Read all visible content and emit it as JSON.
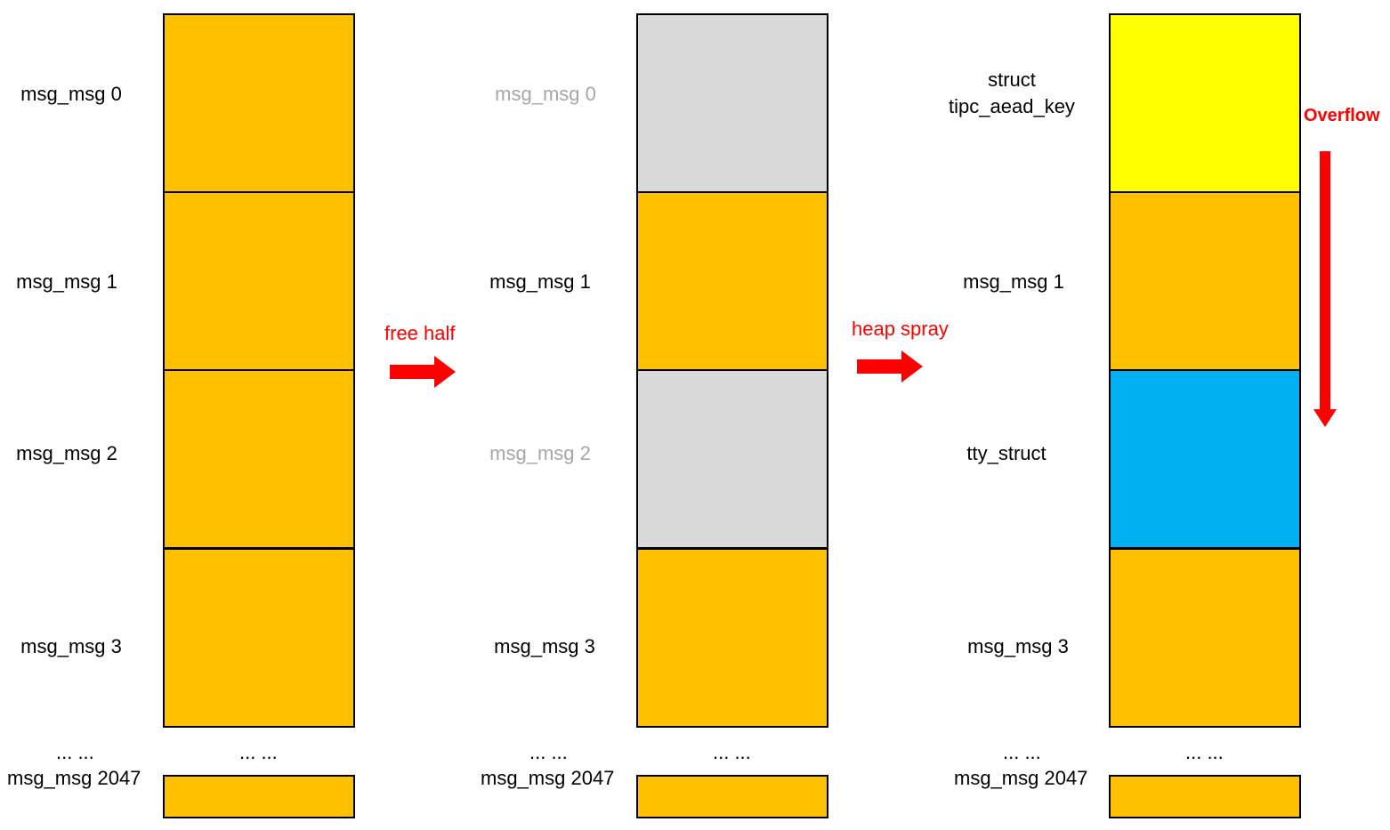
{
  "stage1": {
    "labels": [
      "msg_msg 0",
      "msg_msg 1",
      "msg_msg 2",
      "msg_msg 3"
    ],
    "ellipsis_left": "... ...",
    "ellipsis_block": "... ...",
    "last_label": "msg_msg 2047",
    "block_states": [
      "allocated",
      "allocated",
      "allocated",
      "allocated"
    ]
  },
  "transition1": {
    "label": "free half"
  },
  "stage2": {
    "labels": [
      "msg_msg 0",
      "msg_msg 1",
      "msg_msg 2",
      "msg_msg 3"
    ],
    "ellipsis_left": "... ...",
    "ellipsis_block": "... ...",
    "last_label": "msg_msg 2047",
    "block_states": [
      "freed",
      "allocated",
      "freed",
      "allocated"
    ]
  },
  "transition2": {
    "label": "heap spray"
  },
  "stage3": {
    "key_label_line1": "struct",
    "key_label_line2": "tipc_aead_key",
    "labels": [
      "msg_msg 1",
      "tty_struct",
      "msg_msg 3"
    ],
    "ellipsis_left": "... ...",
    "ellipsis_block": "... ...",
    "last_label": "msg_msg 2047",
    "overflow_label": "Overflow",
    "block_states": [
      "tipc_aead_key",
      "allocated",
      "tty_struct",
      "allocated"
    ]
  },
  "colors": {
    "allocated": "#ffc000",
    "freed": "#d9d9d9",
    "tipc_aead_key": "#ffff00",
    "tty_struct": "#00b0f0",
    "arrow": "#ff0000"
  }
}
